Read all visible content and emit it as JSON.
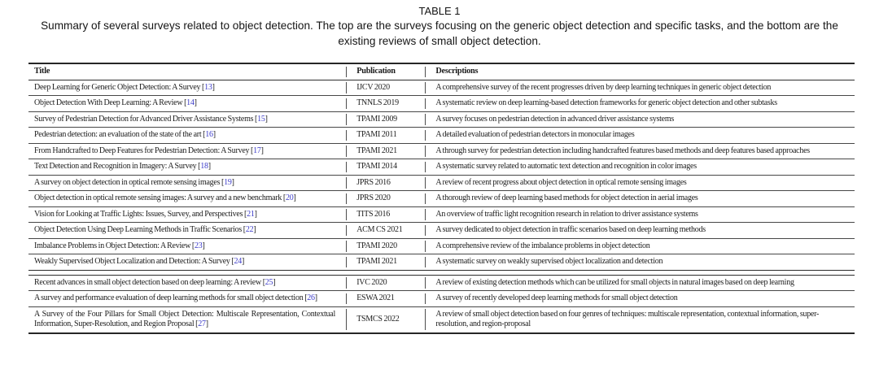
{
  "caption": {
    "label": "TABLE 1",
    "text": "Summary of several surveys related to object detection. The top are the surveys focusing on the generic object detection and specific tasks, and the bottom are the existing reviews of small object detection."
  },
  "table": {
    "columns": [
      "Title",
      "Publication",
      "Descriptions"
    ],
    "citation_color": "#3a3ac8",
    "sections": [
      {
        "name": "generic-object-detection-and-specific-tasks",
        "rows": [
          {
            "title": "Deep Learning for Generic Object Detection: A Survey",
            "cite": "13",
            "publication": "IJCV 2020",
            "description": "A comprehensive survey of the recent progresses driven by deep learning techniques in generic object detection"
          },
          {
            "title": "Object Detection With Deep Learning: A Review",
            "cite": "14",
            "publication": "TNNLS 2019",
            "description": "A systematic review on deep learning-based detection frameworks for generic object detection and other subtasks"
          },
          {
            "title": "Survey of Pedestrian Detection for Advanced Driver Assistance Systems",
            "cite": "15",
            "publication": "TPAMI 2009",
            "description": "A survey focuses on pedestrian detection in advanced driver assistance systems"
          },
          {
            "title": "Pedestrian detection: an evaluation of the state of the art",
            "cite": "16",
            "publication": "TPAMI 2011",
            "description": "A detailed evaluation of pedestrian detectors in monocular images"
          },
          {
            "title": "From Handcrafted to Deep Features for Pedestrian Detection: A Survey",
            "cite": "17",
            "publication": "TPAMI 2021",
            "description": "A through survey for pedestrian detection including handcrafted features based methods and deep features based approaches"
          },
          {
            "title": "Text Detection and Recognition in Imagery: A Survey",
            "cite": "18",
            "publication": "TPAMI 2014",
            "description": "A systematic survey related to automatic text detection and recognition in color images"
          },
          {
            "title": "A survey on object detection in optical remote sensing images",
            "cite": "19",
            "publication": "JPRS 2016",
            "description": "A review of recent progress about object detection in optical remote sensing images"
          },
          {
            "title": "Object detection in optical remote sensing images: A survey and a new benchmark",
            "cite": "20",
            "publication": "JPRS 2020",
            "description": "A thorough review of deep learning based methods for object detection in aerial images"
          },
          {
            "title": "Vision for Looking at Traffic Lights: Issues, Survey, and Perspectives",
            "cite": "21",
            "publication": "TITS 2016",
            "description": "An overview of traffic light recognition research in relation to driver assistance systems"
          },
          {
            "title": "Object Detection Using Deep Learning Methods in Traffic Scenarios",
            "cite": "22",
            "publication": "ACM CS 2021",
            "description": "A survey dedicated to object detection in traffic scenarios based on deep learning methods"
          },
          {
            "title": "Imbalance Problems in Object Detection: A Review",
            "cite": "23",
            "publication": "TPAMI 2020",
            "description": "A comprehensive review of the imbalance problems in object detection"
          },
          {
            "title": "Weakly Supervised Object Localization and Detection: A Survey",
            "cite": "24",
            "publication": "TPAMI 2021",
            "description": "A systematic survey on weakly supervised object localization and detection"
          }
        ]
      },
      {
        "name": "small-object-detection-reviews",
        "rows": [
          {
            "title": "Recent advances in small object detection based on deep learning: A review",
            "cite": "25",
            "publication": "IVC 2020",
            "description": "A review of existing detection methods which can be utilized for small objects in natural images based on deep learning"
          },
          {
            "title": "A survey and performance evaluation of deep learning methods for small object detection",
            "cite": "26",
            "publication": "ESWA 2021",
            "description": "A survey of recently developed deep learning methods for small object detection"
          },
          {
            "title": "A Survey of the Four Pillars for Small Object Detection: Multiscale Representation, Contextual Information, Super-Resolution, and Region Proposal",
            "cite": "27",
            "publication": "TSMCS 2022",
            "description": "A review of small object detection based on four genres of techniques: multiscale representation, contextual information, super-resolution, and region-proposal"
          }
        ]
      }
    ]
  }
}
